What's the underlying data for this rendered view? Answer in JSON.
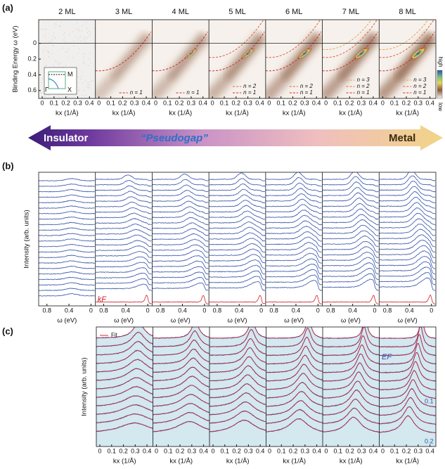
{
  "panel_a": {
    "label": "(a)",
    "columns": [
      "2 ML",
      "3 ML",
      "4 ML",
      "5 ML",
      "6 ML",
      "7 ML",
      "8 ML"
    ],
    "y_label": "Binding Energy ω (eV)",
    "ylim": [
      -0.3,
      0.7
    ],
    "yticks": [
      0,
      0.2,
      0.4,
      0.6
    ],
    "x_label": "kx (1/Å)",
    "xlim": [
      -0.03,
      0.45
    ],
    "xticks": [
      0,
      0.1,
      0.2,
      0.3,
      0.4
    ],
    "legends": [
      [],
      [
        "n = 1"
      ],
      [
        "n = 1"
      ],
      [
        "n = 2",
        "n = 1"
      ],
      [
        "n = 2",
        "n = 1"
      ],
      [
        "n = 3",
        "n = 2",
        "n = 1"
      ],
      [
        "n = 3",
        "n = 2",
        "n = 1"
      ]
    ],
    "inset": {
      "M": "M",
      "gamma": "Γ",
      "X": "X"
    },
    "colorbar": {
      "top": "high",
      "bottom": "low"
    }
  },
  "arrow": {
    "left": "Insulator",
    "middle": "“Pseudogap”",
    "right": "Metal"
  },
  "panel_b": {
    "label": "(b)",
    "y_label": "Intensity (arb. units)",
    "x_label": "ω (eV)",
    "xlim": [
      0.95,
      -0.08
    ],
    "xticks": [
      0.8,
      0.4,
      0
    ],
    "kf_label": "kF"
  },
  "panel_c": {
    "label": "(c)",
    "y_label": "Intensity (arb. units)",
    "legend": "Fit",
    "x_label": "kx (1/Å)",
    "xlim": [
      -0.03,
      0.45
    ],
    "xticks": [
      0,
      0.1,
      0.2,
      0.3,
      0.4
    ],
    "annotations": {
      "ef": "EF",
      "mid": "0.1",
      "low": "0.2"
    }
  }
}
